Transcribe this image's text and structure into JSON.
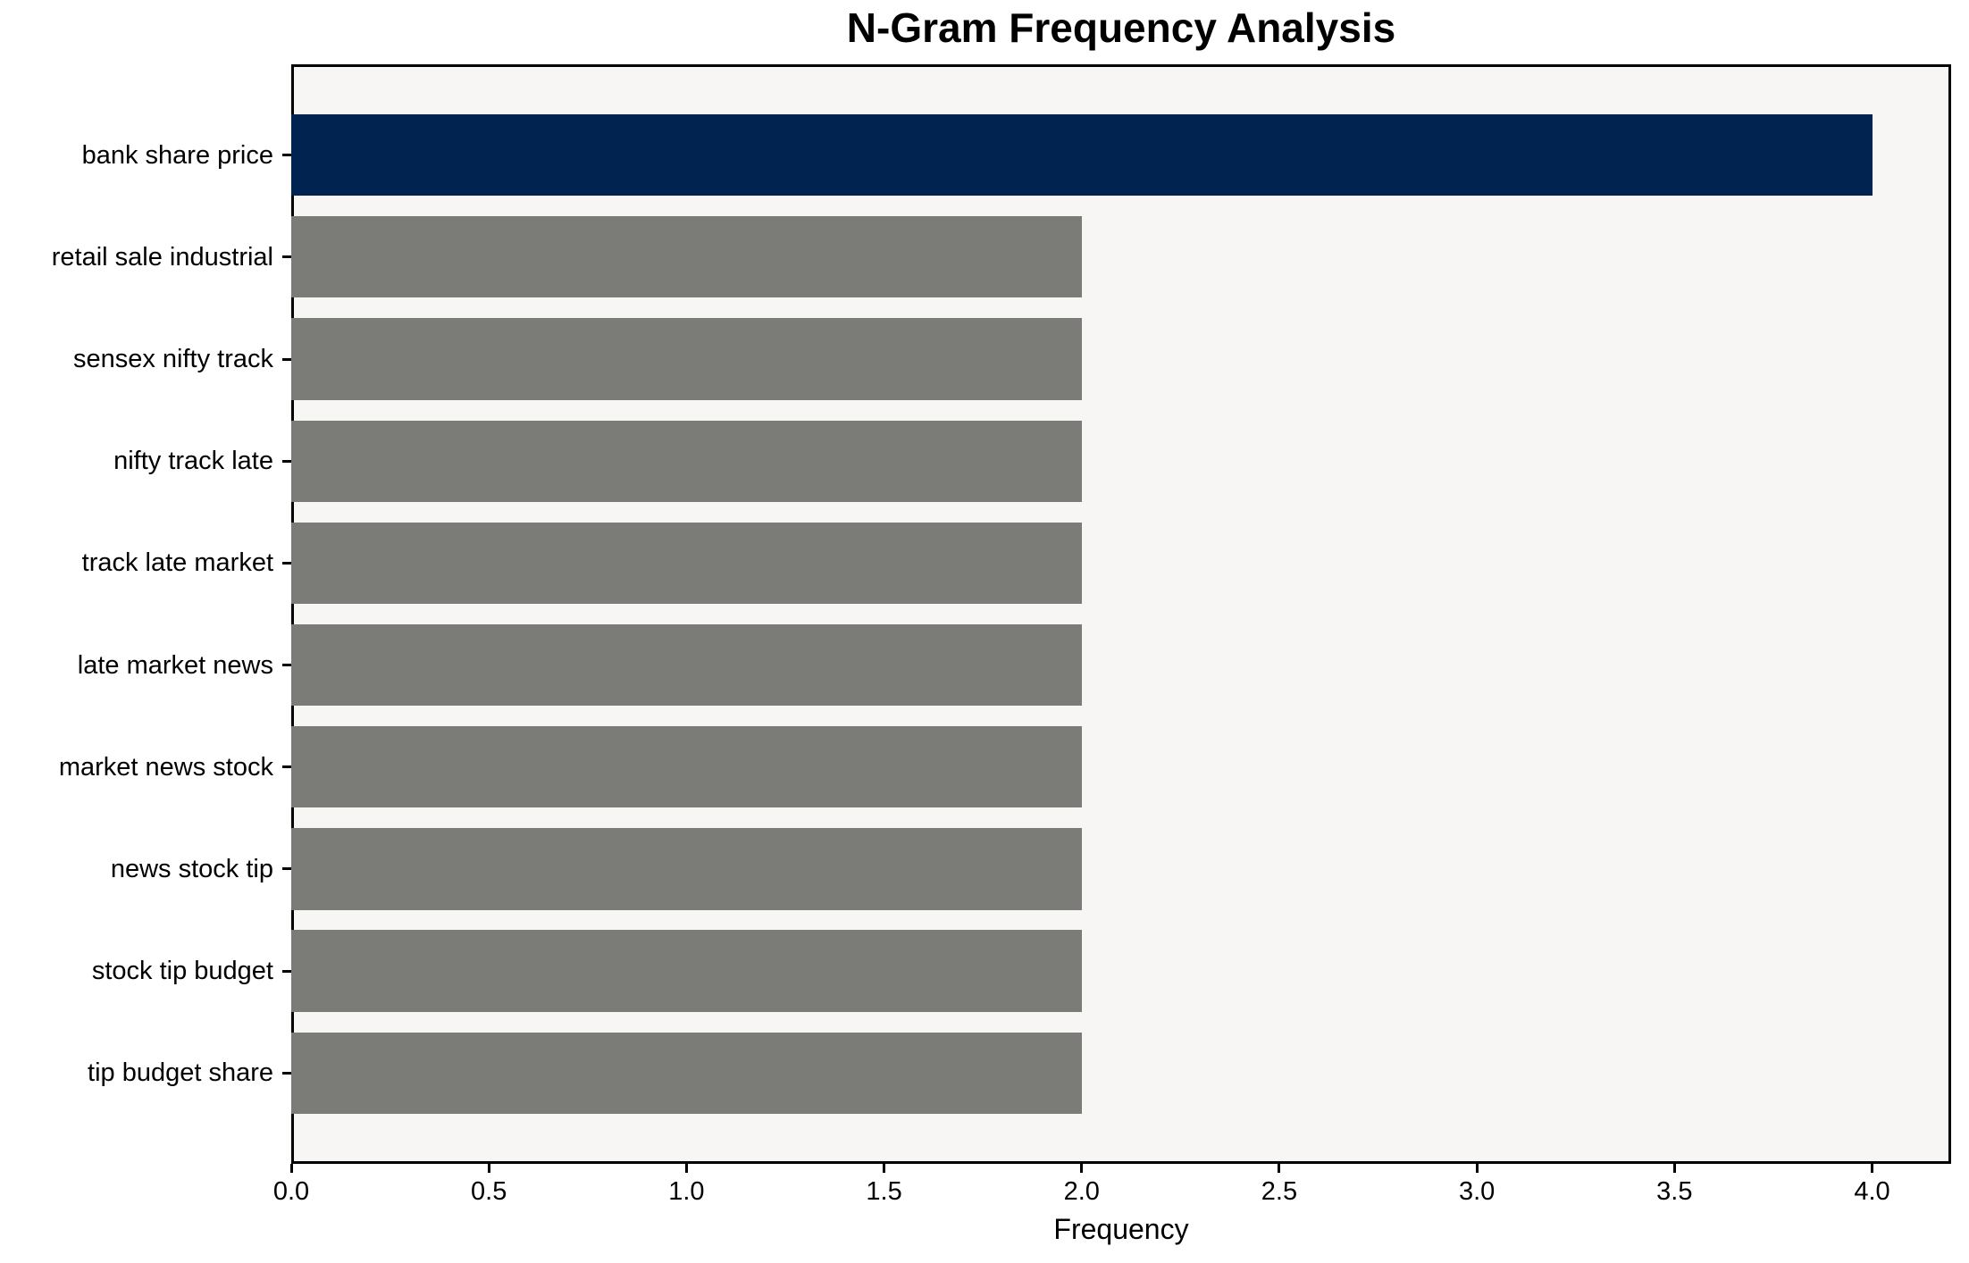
{
  "chart_data": {
    "type": "bar",
    "orientation": "horizontal",
    "title": "N-Gram Frequency Analysis",
    "xlabel": "Frequency",
    "ylabel": "",
    "categories": [
      "bank share price",
      "retail sale industrial",
      "sensex nifty track",
      "nifty track late",
      "track late market",
      "late market news",
      "market news stock",
      "news stock tip",
      "stock tip budget",
      "tip budget share"
    ],
    "values": [
      4,
      2,
      2,
      2,
      2,
      2,
      2,
      2,
      2,
      2
    ],
    "bar_colors": [
      "#012350",
      "#7b7b78",
      "#7b7b78",
      "#7b7b78",
      "#7b7b78",
      "#7b7b78",
      "#7b7b78",
      "#7b7b78",
      "#7b7b78",
      "#7b7b78"
    ],
    "highlight_color": "#012350",
    "base_color": "#7b7b78",
    "plot_background": "#f7f6f5",
    "figure_background": "#ffffff",
    "xlim": [
      0,
      4.2
    ],
    "xtick_values": [
      0,
      0.5,
      1.0,
      1.5,
      2.0,
      2.5,
      3.0,
      3.5,
      4.0
    ],
    "xtick_labels": [
      "0.0",
      "0.5",
      "1.0",
      "1.5",
      "2.0",
      "2.5",
      "3.0",
      "3.5",
      "4.0"
    ],
    "grid": false,
    "legend": null,
    "bar_height_fraction": 0.8
  }
}
